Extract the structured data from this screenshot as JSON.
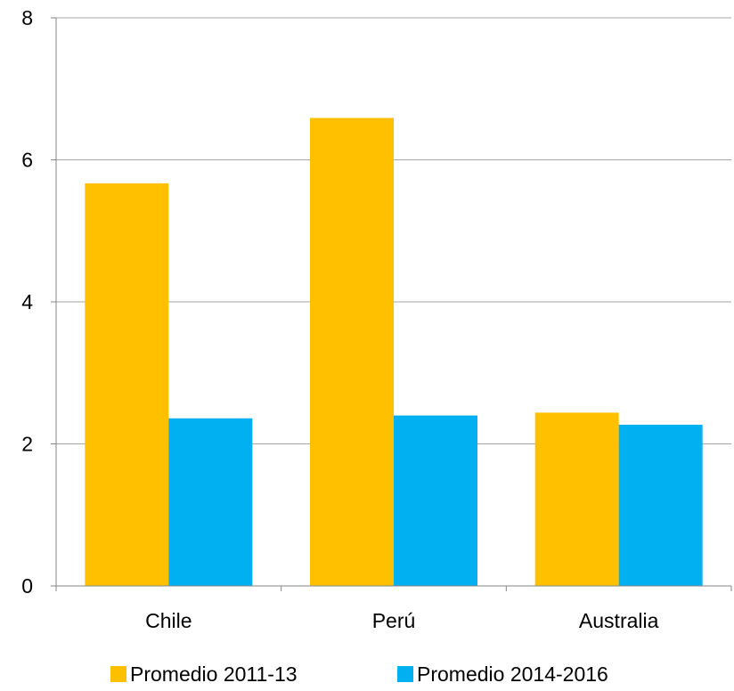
{
  "chart_data": {
    "type": "bar",
    "title": "",
    "xlabel": "",
    "ylabel": "",
    "categories": [
      "Chile",
      "Perú",
      "Australia"
    ],
    "series": [
      {
        "name": "Promedio 2011-13",
        "values": [
          5.67,
          6.59,
          2.44
        ],
        "color": "#FFC000"
      },
      {
        "name": "Promedio 2014-2016",
        "values": [
          2.36,
          2.4,
          2.27
        ],
        "color": "#00B0F0"
      }
    ],
    "ylim": [
      0,
      8
    ],
    "yticks": [
      0,
      2,
      4,
      6,
      8
    ],
    "grid": true,
    "gridline_color": "#A6A6A6",
    "legend_position": "bottom"
  }
}
